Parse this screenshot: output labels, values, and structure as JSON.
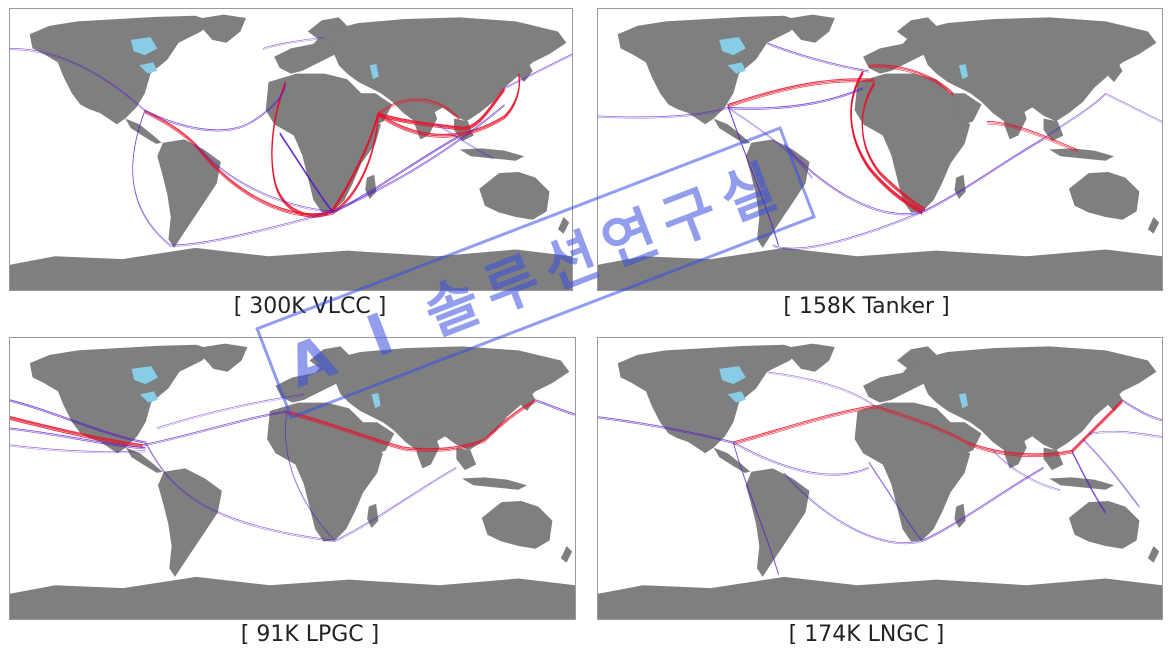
{
  "colors": {
    "land": "#7f7f7f",
    "lake": "#87cde6",
    "ocean": "#ffffff",
    "route_primary": "#e8102a",
    "route_secondary": "#5418c8",
    "stamp": "#3a4ee0"
  },
  "panels": [
    {
      "caption": "[ 300K VLCC ]",
      "density": "heavy-mideast-asia"
    },
    {
      "caption": "[ 158K Tanker ]",
      "density": "atlantic-africa"
    },
    {
      "caption": "[ 91K LPGC ]",
      "density": "pacific-gulf"
    },
    {
      "caption": "[ 174K LNGC ]",
      "density": "global-dispersed"
    }
  ],
  "watermark": {
    "text": "A I 솔루션연구실"
  }
}
